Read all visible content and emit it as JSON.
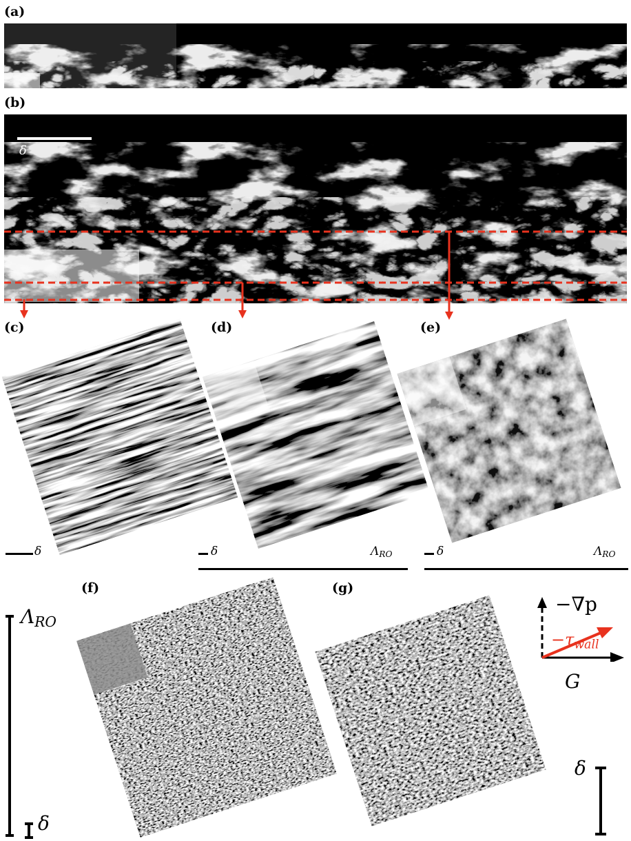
{
  "panels": {
    "a": "(a)",
    "b": "(b)",
    "c": "(c)",
    "d": "(d)",
    "e": "(e)",
    "f": "(f)",
    "g": "(g)"
  },
  "scale_labels": {
    "delta": "δ",
    "lambda_main": "Λ",
    "lambda_sub": "RO"
  },
  "axes_glyph": {
    "pressure_gradient": "−∇p",
    "wall_stress_main": "−τ",
    "wall_stress_sub": "wall",
    "geostrophic": "G"
  },
  "colors": {
    "highlight": "#e8321e",
    "dark_bg": "#000000",
    "ink": "#000000"
  }
}
